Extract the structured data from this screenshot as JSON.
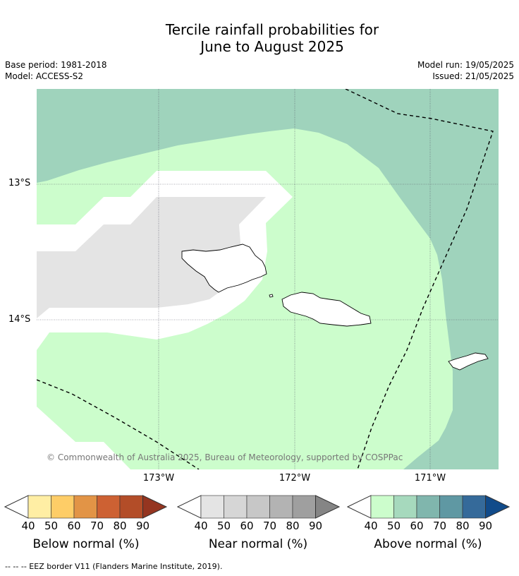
{
  "title_line1": "Tercile rainfall probabilities for",
  "title_line2": "June to August 2025",
  "base_period": "Base period: 1981-2018",
  "model": "Model: ACCESS-S2",
  "model_run": "Model run: 19/05/2025",
  "issued": "Issued: 21/05/2025",
  "lat_labels": [
    "13°S",
    "14°S"
  ],
  "lon_labels": [
    "173°W",
    "172°W",
    "171°W"
  ],
  "copyright": "© Commonwealth of Australia 2025, Bureau of Meteorology, supported by COSPPac",
  "colors": {
    "above_40": "#ccfdcc",
    "above_50": "#9fd3bc",
    "near_40": "#e4e4e4",
    "land_outline": "#000000"
  },
  "colorbars": [
    {
      "title": "Below normal (%)",
      "ticks": [
        "40",
        "50",
        "60",
        "70",
        "80",
        "90"
      ],
      "colors": [
        "#ffeea4",
        "#fecd67",
        "#e29446",
        "#cd6133",
        "#b34d28",
        "#953520"
      ]
    },
    {
      "title": "Near normal (%)",
      "ticks": [
        "40",
        "50",
        "60",
        "70",
        "80",
        "90"
      ],
      "colors": [
        "#e4e4e4",
        "#d6d6d6",
        "#c7c7c7",
        "#b3b3b3",
        "#9f9f9f",
        "#858585"
      ]
    },
    {
      "title": "Above normal (%)",
      "ticks": [
        "40",
        "50",
        "60",
        "70",
        "80",
        "90"
      ],
      "colors": [
        "#ccfdcc",
        "#a6d9bd",
        "#80b6ad",
        "#5f98a3",
        "#356a9a",
        "#114b8a"
      ]
    }
  ],
  "footnote": "--  --  -- EEZ border V11 (Flanders Marine Institute, 2019)."
}
